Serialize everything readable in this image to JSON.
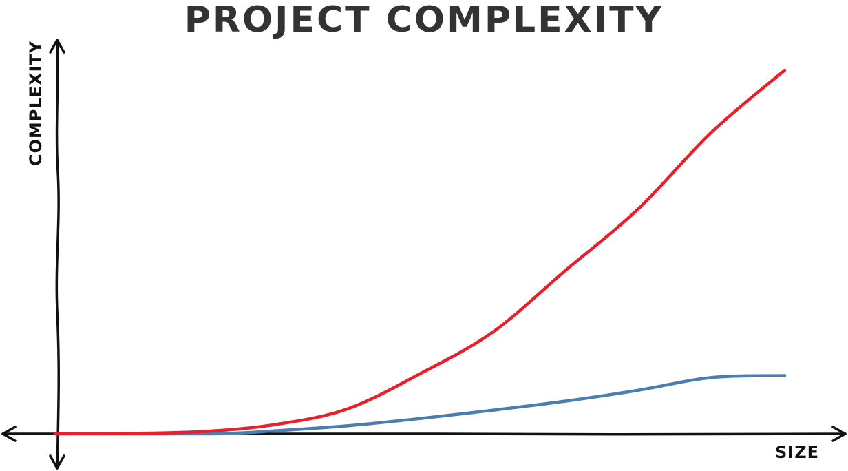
{
  "chart_data": {
    "type": "line",
    "title": "PROJECT COMPLEXITY",
    "xlabel": "SIZE",
    "ylabel": "COMPLEXITY",
    "xlim": [
      0,
      100
    ],
    "ylim": [
      0,
      100
    ],
    "grid": false,
    "series": [
      {
        "color": "#e8202a",
        "x": [
          0,
          10,
          20,
          30,
          40,
          50,
          60,
          70,
          80,
          90,
          100
        ],
        "y": [
          0,
          0.1,
          0.6,
          2.5,
          6.8,
          16.5,
          28,
          45,
          62,
          83,
          100
        ]
      },
      {
        "color": "#4a7db0",
        "x": [
          0,
          20,
          25,
          30,
          40,
          50,
          60,
          70,
          80,
          90,
          100
        ],
        "y": [
          0,
          0,
          0.2,
          0.8,
          2.2,
          4.2,
          6.5,
          9,
          12,
          15.5,
          16
        ]
      }
    ]
  }
}
